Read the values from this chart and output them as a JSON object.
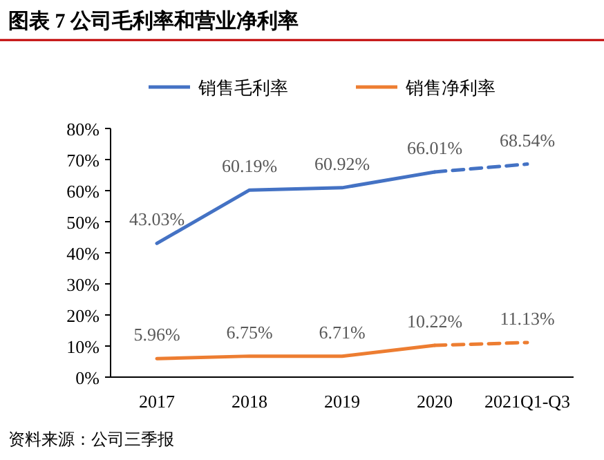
{
  "chart_data": {
    "type": "line",
    "title": "图表 7 公司毛利率和营业净利率",
    "categories": [
      "2017",
      "2018",
      "2019",
      "2020",
      "2021Q1-Q3"
    ],
    "series": [
      {
        "name": "销售毛利率",
        "color": "#4472c4",
        "values": [
          43.03,
          60.19,
          60.92,
          66.01,
          null
        ],
        "value_labels": [
          "43.03%",
          "60.19%",
          "60.92%",
          "66.01%",
          null
        ]
      },
      {
        "color": "#4472c4",
        "line_style": "dashed",
        "values": [
          null,
          null,
          null,
          66.01,
          68.54
        ],
        "value_labels": [
          null,
          null,
          null,
          null,
          "68.54%"
        ]
      },
      {
        "name": "销售净利率",
        "color": "#ed7d31",
        "values": [
          5.96,
          6.75,
          6.71,
          10.22,
          null
        ],
        "value_labels": [
          "5.96%",
          "6.75%",
          "6.71%",
          "10.22%",
          null
        ]
      },
      {
        "color": "#ed7d31",
        "line_style": "dashed",
        "values": [
          null,
          null,
          null,
          10.22,
          11.13
        ],
        "value_labels": [
          null,
          null,
          null,
          null,
          "11.13%"
        ]
      }
    ],
    "ylim": [
      0,
      80
    ],
    "yticks": [
      {
        "value": 0,
        "label": "0%"
      },
      {
        "value": 10,
        "label": "10%"
      },
      {
        "value": 20,
        "label": "20%"
      },
      {
        "value": 30,
        "label": "30%"
      },
      {
        "value": 40,
        "label": "40%"
      },
      {
        "value": 50,
        "label": "50%"
      },
      {
        "value": 60,
        "label": "60%"
      },
      {
        "value": 70,
        "label": "70%"
      },
      {
        "value": 80,
        "label": "80%"
      }
    ],
    "grid": false,
    "legend": "top",
    "marker": "none",
    "annotations": [
      "资料来源：公司三季报"
    ]
  }
}
